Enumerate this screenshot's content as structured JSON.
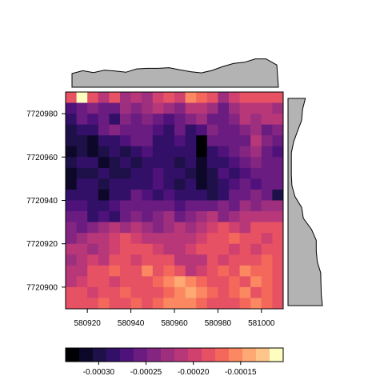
{
  "chart_data": {
    "type": "heatmap",
    "x_ticks": [
      580920,
      580940,
      580960,
      580980,
      581000
    ],
    "y_ticks": [
      7720900,
      7720920,
      7720940,
      7720960,
      7720980
    ],
    "xlim": [
      580910,
      581010
    ],
    "ylim": [
      7720890,
      7720990
    ],
    "colorbar": {
      "ticks": [
        -0.0003,
        -0.00025,
        -0.0002,
        -0.00015
      ],
      "tick_labels": [
        "-0.00030",
        "-0.00025",
        "-0.00020",
        "-0.00015"
      ],
      "range": [
        -0.000335,
        -0.000105
      ],
      "colors": [
        "#000004",
        "#0d0829",
        "#1e1048",
        "#331067",
        "#4f127b",
        "#6a1c81",
        "#842681",
        "#9e2f7f",
        "#b73779",
        "#d0416f",
        "#e65163",
        "#f4685c",
        "#fb8861",
        "#fea873",
        "#fec68a",
        "#fcfdbf"
      ]
    },
    "colormap": "magma",
    "grid": false,
    "n_cols": 20,
    "n_rows": 20,
    "cell_size": 5,
    "x0": 580910,
    "y0": 7720890,
    "values": [
      [
        -0.000185,
        -0.000105,
        -0.000185,
        -0.00021,
        -0.00018,
        -0.00023,
        -0.00021,
        -0.00023,
        -0.0002,
        -0.00019,
        -0.0002,
        -0.00016,
        -0.00017,
        -0.00018,
        -0.00023,
        -0.0002,
        -0.00019,
        -0.00018,
        -0.00019,
        -0.00018
      ],
      [
        -0.000265,
        -0.00025,
        -0.00024,
        -0.00025,
        -0.00026,
        -0.00023,
        -0.00024,
        -0.00023,
        -0.00022,
        -0.00023,
        -0.00024,
        -0.00021,
        -0.00022,
        -0.00023,
        -0.00026,
        -0.00023,
        -0.00021,
        -0.00022,
        -0.00021,
        -0.00023
      ],
      [
        -0.000285,
        -0.00026,
        -0.000275,
        -0.00026,
        -0.00028,
        -0.00024,
        -0.00025,
        -0.00024,
        -0.00026,
        -0.00027,
        -0.00025,
        -0.00024,
        -0.00023,
        -0.00025,
        -0.00026,
        -0.00024,
        -0.00022,
        -0.00023,
        -0.00021,
        -0.00022
      ],
      [
        -0.000305,
        -0.00028,
        -0.00029,
        -0.00026,
        -0.00024,
        -0.00025,
        -0.00025,
        -0.00026,
        -0.00027,
        -0.00028,
        -0.00026,
        -0.00028,
        -0.00027,
        -0.00024,
        -0.00025,
        -0.00026,
        -0.00024,
        -0.00023,
        -0.00025,
        -0.00024
      ],
      [
        -0.000305,
        -0.0003,
        -0.00031,
        -0.00028,
        -0.00029,
        -0.00027,
        -0.00026,
        -0.00025,
        -0.00028,
        -0.00029,
        -0.00027,
        -0.00028,
        -0.000325,
        -0.00026,
        -0.00025,
        -0.00026,
        -0.00025,
        -0.00022,
        -0.00024,
        -0.00025
      ],
      [
        -0.00031,
        -0.000295,
        -0.000315,
        -0.0003,
        -0.00029,
        -0.0003,
        -0.00028,
        -0.00027,
        -0.00029,
        -0.00028,
        -0.00029,
        -0.00029,
        -0.000335,
        -0.00029,
        -0.00027,
        -0.00026,
        -0.00024,
        -0.00023,
        -0.00025,
        -0.000275
      ],
      [
        -0.000305,
        -0.00029,
        -0.00029,
        -0.00031,
        -0.000305,
        -0.00029,
        -0.0003,
        -0.00028,
        -0.00028,
        -0.00029,
        -0.0003,
        -0.00029,
        -0.00031,
        -0.00029,
        -0.00028,
        -0.00027,
        -0.00025,
        -0.00024,
        -0.00025,
        -0.00026
      ],
      [
        -0.000315,
        -0.000295,
        -0.0003,
        -0.00029,
        -0.0003,
        -0.0003,
        -0.00029,
        -0.00029,
        -0.00027,
        -0.00028,
        -0.00028,
        -0.000305,
        -0.00031,
        -0.0003,
        -0.00027,
        -0.00028,
        -0.00027,
        -0.00025,
        -0.00026,
        -0.00025
      ],
      [
        -0.00031,
        -0.00028,
        -0.00029,
        -0.0003,
        -0.00028,
        -0.00029,
        -0.00029,
        -0.00028,
        -0.00027,
        -0.00028,
        -0.0003,
        -0.00029,
        -0.00031,
        -0.0003,
        -0.00029,
        -0.00027,
        -0.00025,
        -0.00027,
        -0.00026,
        -0.00025
      ],
      [
        -0.00029,
        -0.00028,
        -0.00029,
        -0.00031,
        -0.00029,
        -0.00028,
        -0.00026,
        -0.00027,
        -0.00028,
        -0.00027,
        -0.00028,
        -0.00029,
        -0.00029,
        -0.0003,
        -0.00028,
        -0.00026,
        -0.00025,
        -0.00024,
        -0.00026,
        -0.000305
      ],
      [
        -0.000265,
        -0.00027,
        -0.00028,
        -0.000285,
        -0.00027,
        -0.00026,
        -0.00025,
        -0.00026,
        -0.00025,
        -0.00026,
        -0.00027,
        -0.00026,
        -0.00026,
        -0.00025,
        -0.00024,
        -0.00025,
        -0.00023,
        -0.00024,
        -0.00023,
        -0.00023
      ],
      [
        -0.00025,
        -0.00026,
        -0.000285,
        -0.00027,
        -0.00028,
        -0.00025,
        -0.00024,
        -0.00025,
        -0.00024,
        -0.00023,
        -0.00026,
        -0.00024,
        -0.00023,
        -0.00022,
        -0.00024,
        -0.00023,
        -0.00022,
        -0.00021,
        -0.00022,
        -0.00021
      ],
      [
        -0.000245,
        -0.00025,
        -0.00024,
        -0.00023,
        -0.00022,
        -0.00023,
        -0.00022,
        -0.00023,
        -0.00024,
        -0.00023,
        -0.00022,
        -0.00023,
        -0.00021,
        -0.0002,
        -0.00019,
        -0.0002,
        -0.00021,
        -0.00018,
        -0.00018,
        -0.00019
      ],
      [
        -0.00024,
        -0.00023,
        -0.00022,
        -0.00021,
        -0.0002,
        -0.00019,
        -0.0002,
        -0.00021,
        -0.00022,
        -0.00021,
        -0.00022,
        -0.00021,
        -0.0002,
        -0.00019,
        -0.00018,
        -0.00017,
        -0.00019,
        -0.00018,
        -0.0002,
        -0.00019
      ],
      [
        -0.000215,
        -0.00022,
        -0.00023,
        -0.00021,
        -0.0002,
        -0.00018,
        -0.00019,
        -0.00019,
        -0.0002,
        -0.00021,
        -0.00022,
        -0.0002,
        -0.00019,
        -0.00018,
        -0.00019,
        -0.0002,
        -0.00019,
        -0.0002,
        -0.00018,
        -0.00019
      ],
      [
        -0.000225,
        -0.00021,
        -0.0002,
        -0.00021,
        -0.00019,
        -0.00018,
        -0.0002,
        -0.00019,
        -0.00018,
        -0.00019,
        -0.00021,
        -0.00022,
        -0.00021,
        -0.00019,
        -0.0002,
        -0.00018,
        -0.00019,
        -0.00018,
        -0.00017,
        -0.00018
      ],
      [
        -0.00021,
        -0.00021,
        -0.00019,
        -0.00018,
        -0.00017,
        -0.00019,
        -0.00018,
        -0.00016,
        -0.00018,
        -0.00017,
        -0.00019,
        -0.00021,
        -0.0002,
        -0.00018,
        -0.00017,
        -0.00018,
        -0.00016,
        -0.00017,
        -0.00017,
        -0.00019
      ],
      [
        -0.00021,
        -0.0002,
        -0.00019,
        -0.00018,
        -0.0002,
        -0.00018,
        -0.00019,
        -0.00018,
        -0.00017,
        -0.00016,
        -0.000145,
        -0.00016,
        -0.00017,
        -0.00019,
        -0.00018,
        -0.00017,
        -0.00018,
        -0.00016,
        -0.00017,
        -0.00018
      ],
      [
        -0.00019,
        -0.00019,
        -0.0002,
        -0.00019,
        -0.00018,
        -0.00017,
        -0.00019,
        -0.00018,
        -0.00019,
        -0.00017,
        -0.00015,
        -0.00014,
        -0.00016,
        -0.00017,
        -0.00018,
        -0.00017,
        -0.00016,
        -0.00018,
        -0.00017,
        -0.00019
      ],
      [
        -0.00018,
        -0.00019,
        -0.00018,
        -0.00017,
        -0.00018,
        -0.00019,
        -0.00017,
        -0.00018,
        -0.00017,
        -0.00016,
        -0.000155,
        -0.00016,
        -0.00017,
        -0.00018,
        -0.00019,
        -0.00018,
        -0.00017,
        -0.00016,
        -0.00017,
        -0.00018
      ]
    ],
    "top_marginal": {
      "values": [
        -0.000253,
        -0.000244,
        -0.00025,
        -0.000242,
        -0.000245,
        -0.000249,
        -0.000238,
        -0.000236,
        -0.000236,
        -0.000234,
        -0.000241,
        -0.000247,
        -0.000251,
        -0.000243,
        -0.00023,
        -0.00022,
        -0.000216,
        -0.000205,
        -0.000205,
        -0.000225
      ]
    },
    "right_marginal": {
      "values": [
        -0.000236,
        -0.000246,
        -0.000249,
        -0.000264,
        -0.000278,
        -0.000286,
        -0.000286,
        -0.000286,
        -0.000284,
        -0.000273,
        -0.000249,
        -0.000243,
        -0.000214,
        -0.000197,
        -0.000197,
        -0.000193,
        -0.000181,
        -0.00018,
        -0.000179,
        -0.000175
      ]
    }
  }
}
